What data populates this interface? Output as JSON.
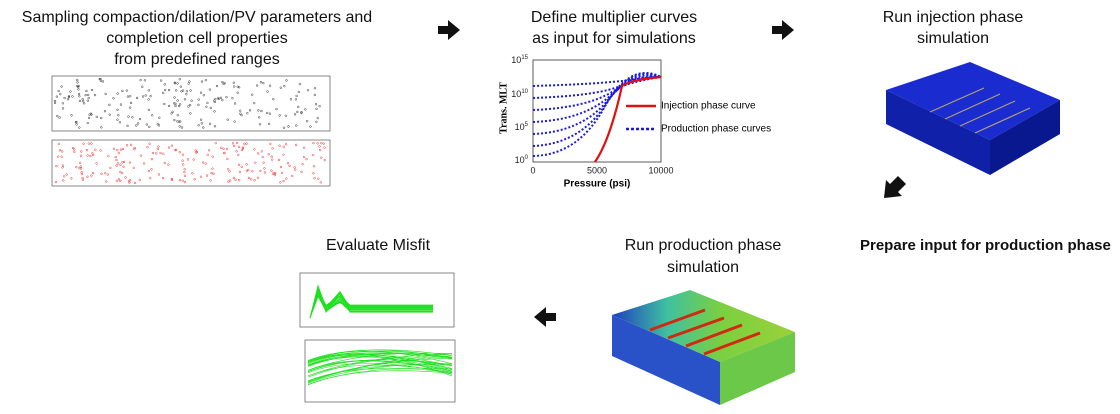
{
  "nodes": [
    {
      "lines": [
        "Sampling compaction/dilation/PV parameters and",
        "completion cell properties",
        "from predefined ranges"
      ]
    },
    {
      "lines": [
        "Define multiplier curves",
        "as input for simulations"
      ],
      "plot": {
        "y_label": "Trans. MLT",
        "x_label": "Pressure (psi)",
        "x_ticks": [
          "0",
          "5000",
          "10000"
        ],
        "y_ticks": [
          {
            "base": "10",
            "exp": "0"
          },
          {
            "base": "10",
            "exp": "5"
          },
          {
            "base": "10",
            "exp": "10"
          },
          {
            "base": "10",
            "exp": "15"
          }
        ],
        "legend": [
          "Injection phase curve",
          "Production phase curves"
        ]
      }
    },
    {
      "lines": [
        "Run injection phase",
        "simulation"
      ]
    },
    {
      "lines": [
        "Prepare input for production phase"
      ]
    },
    {
      "lines": [
        "Run production phase",
        "simulation"
      ]
    },
    {
      "lines": [
        "Evaluate Misfit"
      ]
    }
  ]
}
